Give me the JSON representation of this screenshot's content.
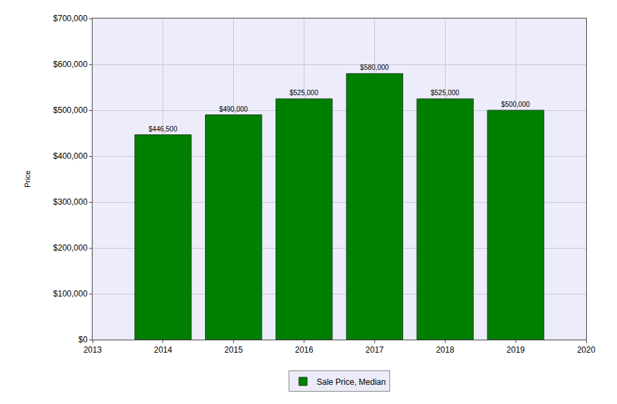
{
  "chart_data": {
    "type": "bar",
    "y_label": "Price",
    "x": [
      2014,
      2015,
      2016,
      2017,
      2018,
      2019
    ],
    "series": [
      {
        "name": "Sale Price, Median",
        "color": "#008000",
        "values": [
          446500,
          490000,
          525000,
          580000,
          525000,
          500000
        ],
        "value_labels": [
          "$446,500",
          "$490,000",
          "$525,000",
          "$580,000",
          "$525,000",
          "$500,000"
        ]
      }
    ],
    "xlim": [
      2013,
      2020
    ],
    "xticks": [
      2013,
      2014,
      2015,
      2016,
      2017,
      2018,
      2019,
      2020
    ],
    "ylim": [
      0,
      700000
    ],
    "yticks": [
      {
        "value": 0,
        "label": "$0"
      },
      {
        "value": 100000,
        "label": "$100,000"
      },
      {
        "value": 200000,
        "label": "$200,000"
      },
      {
        "value": 300000,
        "label": "$300,000"
      },
      {
        "value": 400000,
        "label": "$400,000"
      },
      {
        "value": 500000,
        "label": "$500,000"
      },
      {
        "value": 600000,
        "label": "$600,000"
      },
      {
        "value": 700000,
        "label": "$700,000"
      }
    ],
    "grid": true,
    "data_labels": true,
    "legend": "bottom"
  }
}
